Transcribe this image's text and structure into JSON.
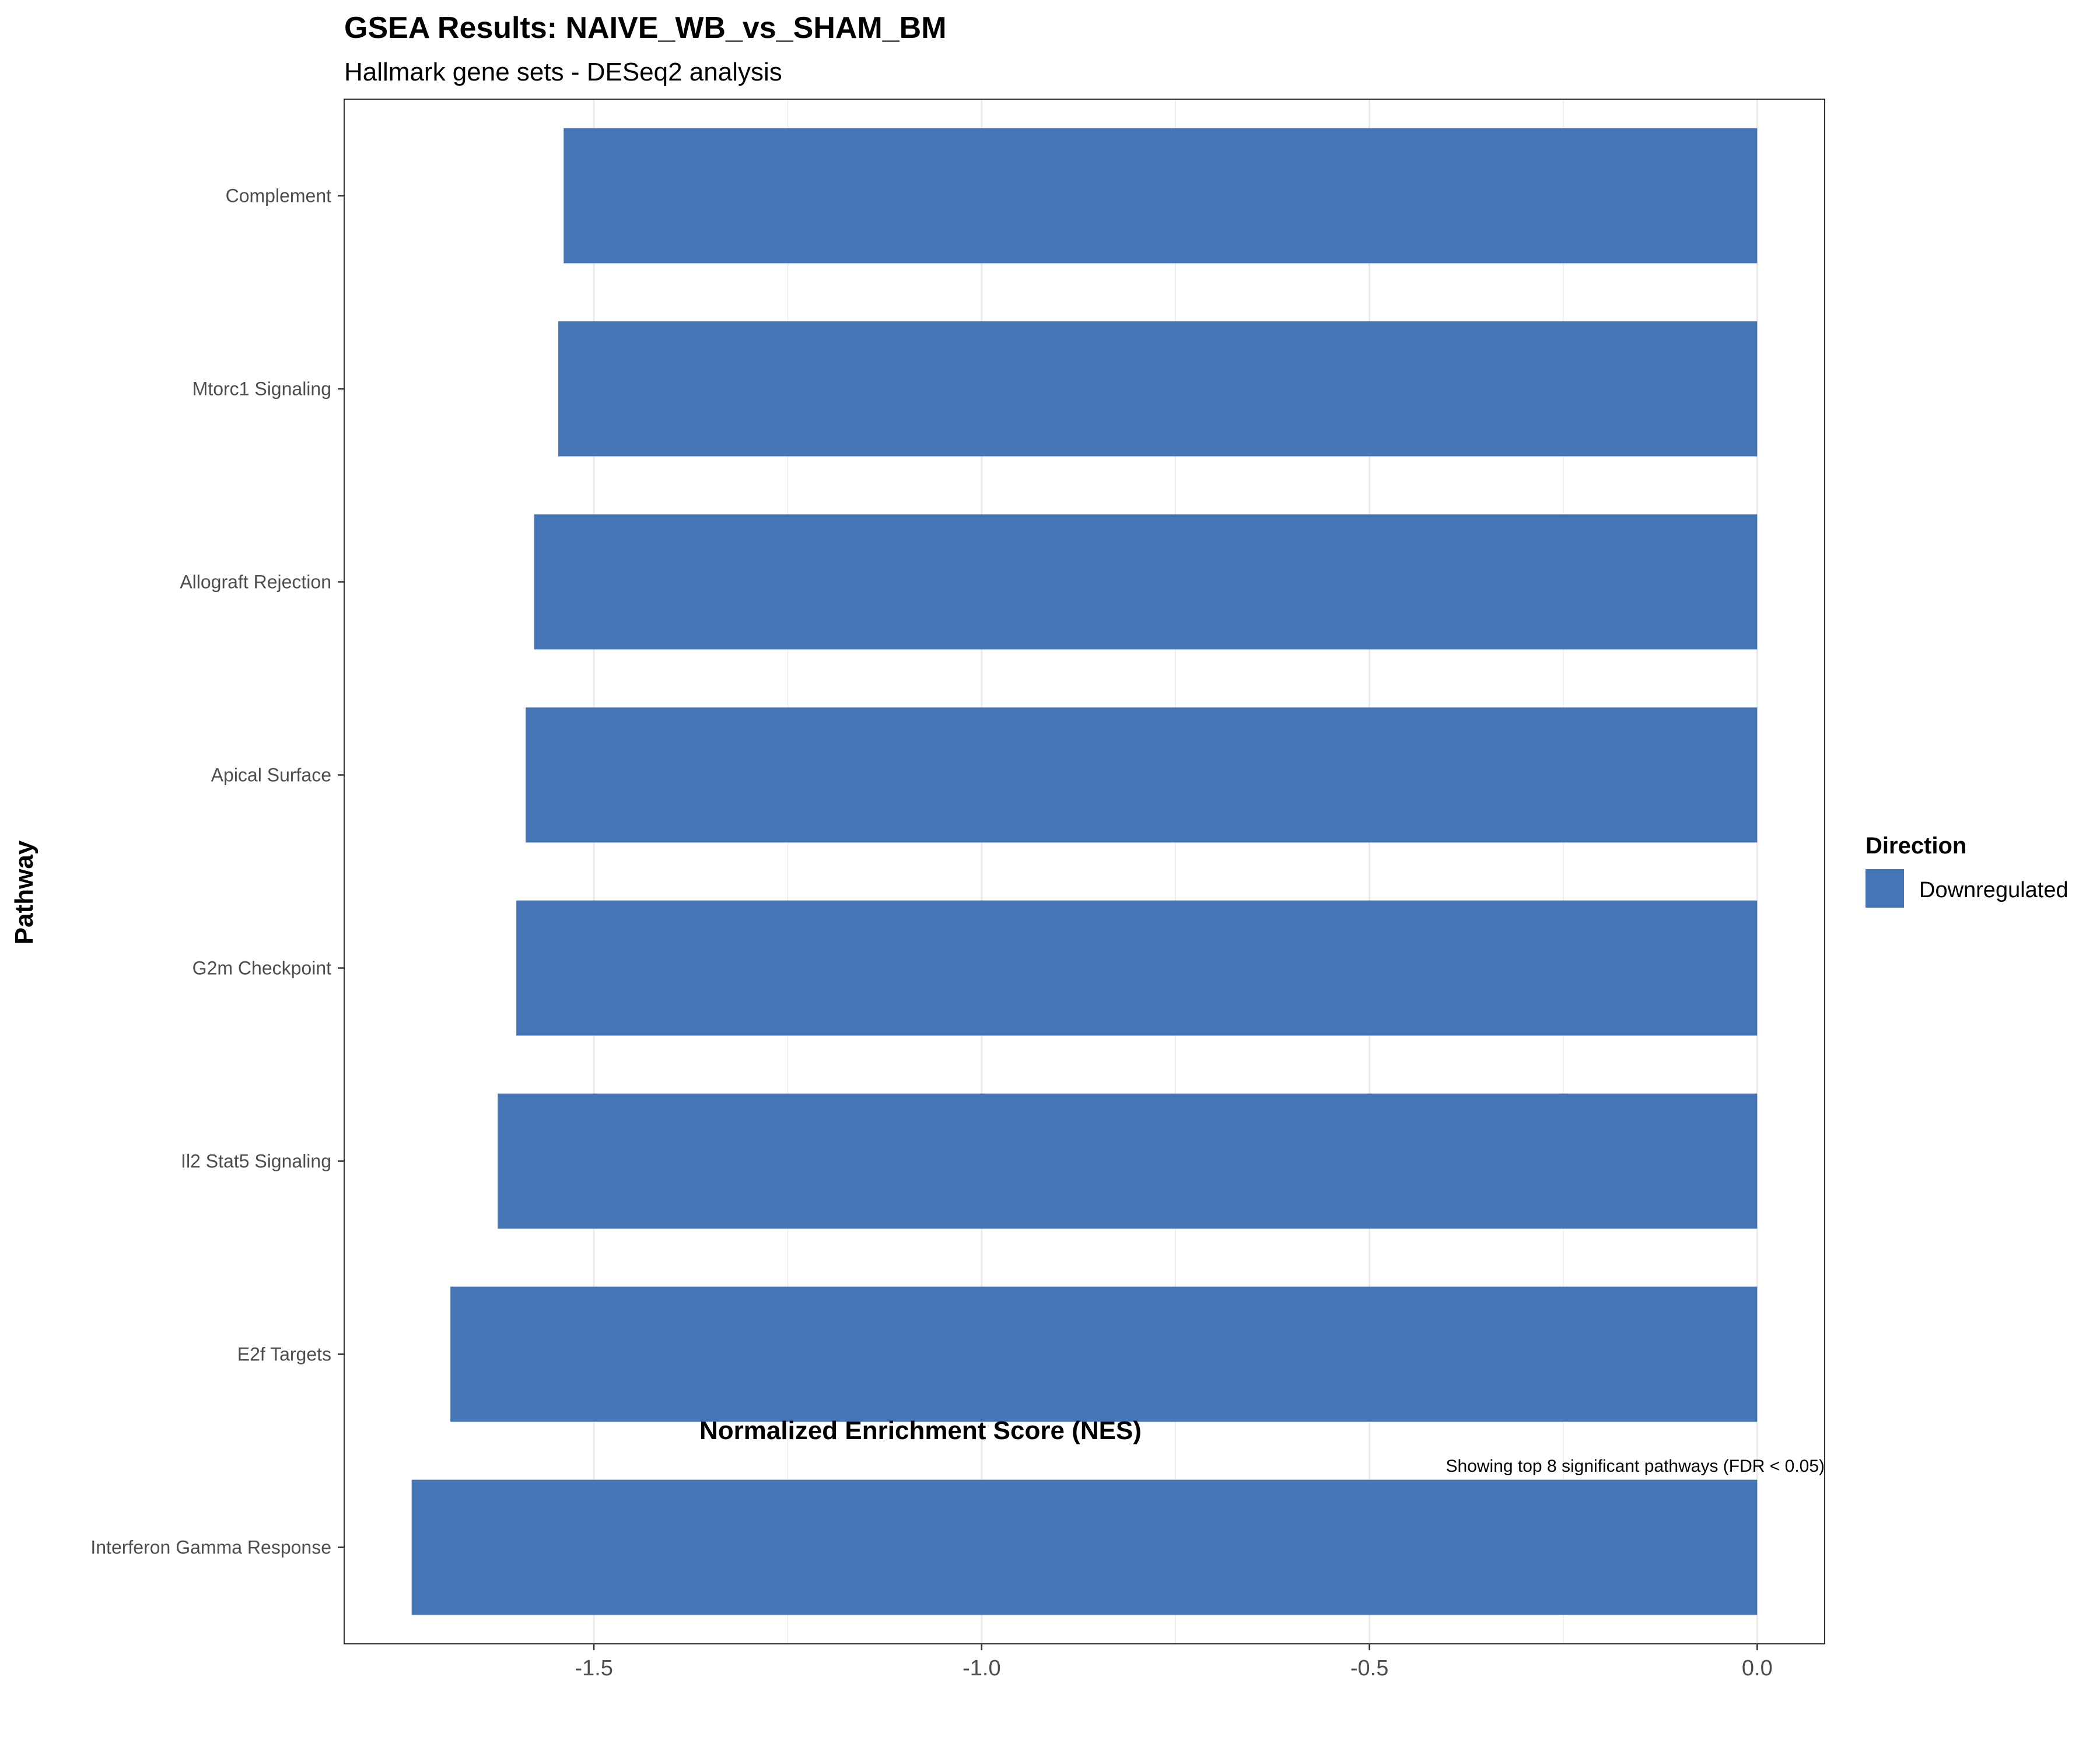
{
  "chart_data": {
    "type": "bar",
    "orientation": "horizontal",
    "title": "GSEA Results: NAIVE_WB_vs_SHAM_BM",
    "subtitle": "Hallmark gene sets - DESeq2 analysis",
    "xlabel": "Normalized Enrichment Score (NES)",
    "ylabel": "Pathway",
    "caption": "Showing top 8 significant pathways (FDR < 0.05)",
    "categories": [
      "Complement",
      "Mtorc1 Signaling",
      "Allograft Rejection",
      "Apical Surface",
      "G2m Checkpoint",
      "Il2 Stat5 Signaling",
      "E2f Targets",
      "Interferon Gamma Response"
    ],
    "series": [
      {
        "values": [
          -1.539,
          -1.546,
          -1.577,
          -1.588,
          -1.6,
          -1.624,
          -1.685,
          -1.735
        ],
        "direction": [
          "Downregulated",
          "Downregulated",
          "Downregulated",
          "Downregulated",
          "Downregulated",
          "Downregulated",
          "Downregulated",
          "Downregulated"
        ]
      }
    ],
    "x_ticks": [
      -1.5,
      -1.0,
      -0.5,
      0.0
    ],
    "x_tick_labels": [
      "-1.5",
      "-1.0",
      "-0.5",
      "0.0"
    ],
    "xlim": [
      -1.822,
      0.087
    ],
    "grid": true,
    "legend": {
      "title": "Direction",
      "placement": "right",
      "entries": [
        {
          "label": "Downregulated",
          "color": "#4575b4"
        }
      ]
    },
    "colors": {
      "Downregulated": "#4575b4",
      "grid": "#ebebeb",
      "panel_border": "#333333"
    }
  }
}
